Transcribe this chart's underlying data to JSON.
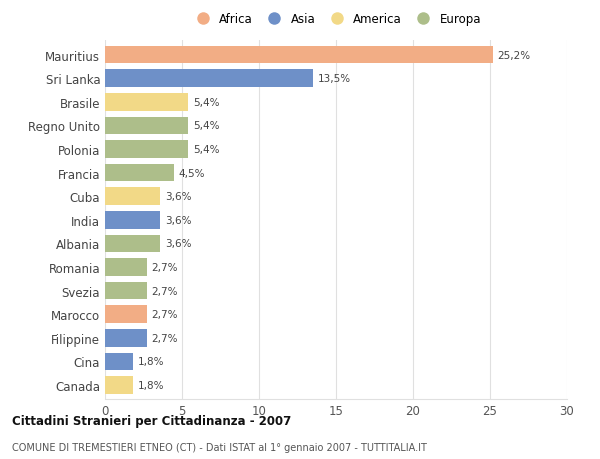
{
  "countries": [
    "Mauritius",
    "Sri Lanka",
    "Brasile",
    "Regno Unito",
    "Polonia",
    "Francia",
    "Cuba",
    "India",
    "Albania",
    "Romania",
    "Svezia",
    "Marocco",
    "Filippine",
    "Cina",
    "Canada"
  ],
  "values": [
    25.2,
    13.5,
    5.4,
    5.4,
    5.4,
    4.5,
    3.6,
    3.6,
    3.6,
    2.7,
    2.7,
    2.7,
    2.7,
    1.8,
    1.8
  ],
  "labels": [
    "25,2%",
    "13,5%",
    "5,4%",
    "5,4%",
    "5,4%",
    "4,5%",
    "3,6%",
    "3,6%",
    "3,6%",
    "2,7%",
    "2,7%",
    "2,7%",
    "2,7%",
    "1,8%",
    "1,8%"
  ],
  "continents": [
    "Africa",
    "Asia",
    "America",
    "Europa",
    "Europa",
    "Europa",
    "America",
    "Asia",
    "Europa",
    "Europa",
    "Europa",
    "Africa",
    "Asia",
    "Asia",
    "America"
  ],
  "continent_colors": {
    "Africa": "#F2AD85",
    "Asia": "#6E90C8",
    "America": "#F2D987",
    "Europa": "#ADBE8A"
  },
  "legend_order": [
    "Africa",
    "Asia",
    "America",
    "Europa"
  ],
  "title": "Cittadini Stranieri per Cittadinanza - 2007",
  "subtitle": "COMUNE DI TREMESTIERI ETNEO (CT) - Dati ISTAT al 1° gennaio 2007 - TUTTITALIA.IT",
  "xlim": [
    0,
    30
  ],
  "xticks": [
    0,
    5,
    10,
    15,
    20,
    25,
    30
  ],
  "bg_color": "#ffffff",
  "grid_color": "#e0e0e0"
}
